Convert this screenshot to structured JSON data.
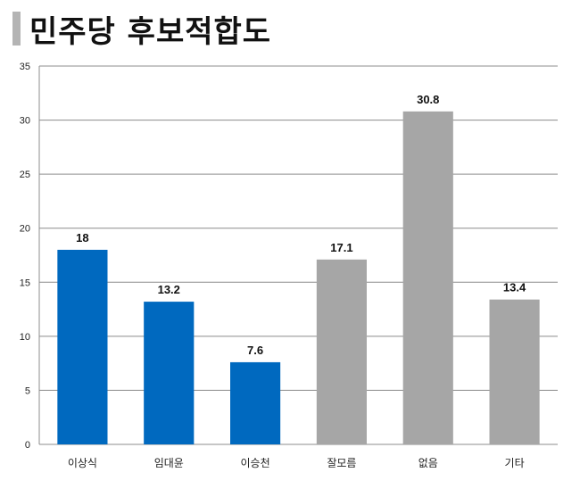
{
  "header": {
    "title": "민주당 후보적합도"
  },
  "chart_data": {
    "type": "bar",
    "title": "민주당 후보적합도",
    "categories": [
      "이상식",
      "임대윤",
      "이승천",
      "잘모름",
      "없음",
      "기타"
    ],
    "values": [
      18,
      13.2,
      7.6,
      17.1,
      30.8,
      13.4
    ],
    "data_labels": [
      "18",
      "13.2",
      "7.6",
      "17.1",
      "30.8",
      "13.4"
    ],
    "bar_colors": [
      "#0069bf",
      "#0069bf",
      "#0069bf",
      "#a6a6a6",
      "#a6a6a6",
      "#a6a6a6"
    ],
    "ylim": [
      0,
      35
    ],
    "yticks": [
      0,
      5,
      10,
      15,
      20,
      25,
      30,
      35
    ],
    "xlabel": "",
    "ylabel": "",
    "grid": true,
    "legend": "none"
  }
}
